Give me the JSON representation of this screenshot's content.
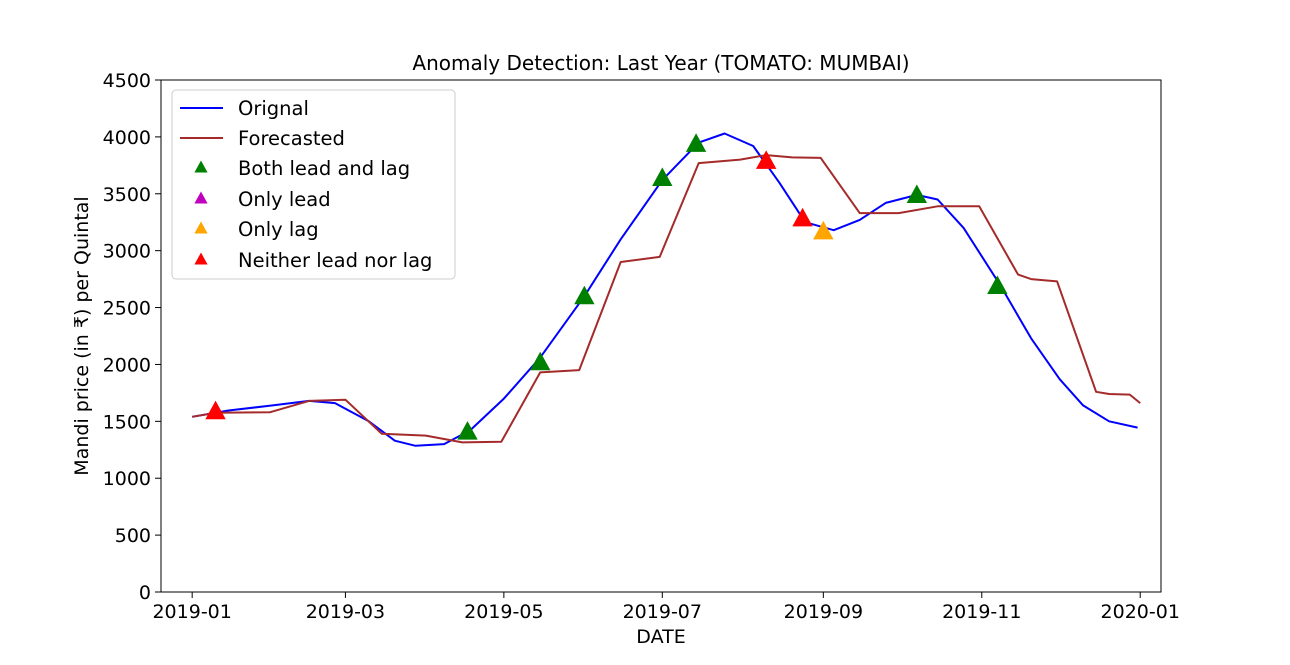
{
  "chart_data": {
    "type": "line",
    "title": "Anomaly Detection: Last Year (TOMATO: MUMBAI)",
    "xlabel": "DATE",
    "ylabel": "Mandi price (in ₹) per Quintal",
    "x_range": [
      "2018-12-20",
      "2020-01-09"
    ],
    "ylim": [
      0,
      4500
    ],
    "x_ticks": [
      "2019-01",
      "2019-03",
      "2019-05",
      "2019-07",
      "2019-09",
      "2019-11",
      "2020-01"
    ],
    "x_tick_dates": [
      "2019-01-01",
      "2019-03-01",
      "2019-05-01",
      "2019-07-01",
      "2019-09-01",
      "2019-11-01",
      "2020-01-01"
    ],
    "y_ticks": [
      0,
      500,
      1000,
      1500,
      2000,
      2500,
      3000,
      3500,
      4000,
      4500
    ],
    "grid": false,
    "legend_position": "top-left",
    "series": [
      {
        "name": "Orignal",
        "color": "#0000ff",
        "points": [
          [
            "2019-01-01",
            1540
          ],
          [
            "2019-01-15",
            1595
          ],
          [
            "2019-02-01",
            1640
          ],
          [
            "2019-02-15",
            1680
          ],
          [
            "2019-02-25",
            1660
          ],
          [
            "2019-03-10",
            1500
          ],
          [
            "2019-03-20",
            1330
          ],
          [
            "2019-03-28",
            1285
          ],
          [
            "2019-04-08",
            1300
          ],
          [
            "2019-04-18",
            1420
          ],
          [
            "2019-05-01",
            1700
          ],
          [
            "2019-05-15",
            2060
          ],
          [
            "2019-06-01",
            2600
          ],
          [
            "2019-06-15",
            3100
          ],
          [
            "2019-07-01",
            3620
          ],
          [
            "2019-07-15",
            3950
          ],
          [
            "2019-07-25",
            4030
          ],
          [
            "2019-08-05",
            3920
          ],
          [
            "2019-08-15",
            3600
          ],
          [
            "2019-08-25",
            3250
          ],
          [
            "2019-09-05",
            3180
          ],
          [
            "2019-09-15",
            3270
          ],
          [
            "2019-09-25",
            3420
          ],
          [
            "2019-10-07",
            3490
          ],
          [
            "2019-10-15",
            3450
          ],
          [
            "2019-10-25",
            3200
          ],
          [
            "2019-11-08",
            2700
          ],
          [
            "2019-11-20",
            2230
          ],
          [
            "2019-12-01",
            1870
          ],
          [
            "2019-12-10",
            1640
          ],
          [
            "2019-12-20",
            1500
          ],
          [
            "2019-12-31",
            1445
          ]
        ]
      },
      {
        "name": "Forecasted",
        "color": "#a52a2a",
        "points": [
          [
            "2019-01-01",
            1540
          ],
          [
            "2019-01-10",
            1575
          ],
          [
            "2019-01-31",
            1580
          ],
          [
            "2019-02-15",
            1680
          ],
          [
            "2019-03-01",
            1690
          ],
          [
            "2019-03-15",
            1390
          ],
          [
            "2019-04-01",
            1375
          ],
          [
            "2019-04-15",
            1315
          ],
          [
            "2019-04-30",
            1320
          ],
          [
            "2019-05-15",
            1930
          ],
          [
            "2019-05-30",
            1950
          ],
          [
            "2019-06-15",
            2900
          ],
          [
            "2019-06-30",
            2945
          ],
          [
            "2019-07-15",
            3770
          ],
          [
            "2019-07-31",
            3800
          ],
          [
            "2019-08-10",
            3840
          ],
          [
            "2019-08-20",
            3820
          ],
          [
            "2019-08-31",
            3815
          ],
          [
            "2019-09-15",
            3330
          ],
          [
            "2019-09-30",
            3330
          ],
          [
            "2019-10-15",
            3390
          ],
          [
            "2019-10-31",
            3390
          ],
          [
            "2019-11-15",
            2790
          ],
          [
            "2019-11-20",
            2750
          ],
          [
            "2019-11-30",
            2730
          ],
          [
            "2019-12-15",
            1760
          ],
          [
            "2019-12-20",
            1740
          ],
          [
            "2019-12-28",
            1735
          ],
          [
            "2020-01-01",
            1660
          ]
        ]
      }
    ],
    "markers": [
      {
        "name": "Both lead and lag",
        "color": "#008000",
        "points": [
          [
            "2019-04-17",
            1400
          ],
          [
            "2019-05-15",
            2010
          ],
          [
            "2019-06-01",
            2590
          ],
          [
            "2019-07-01",
            3630
          ],
          [
            "2019-07-14",
            3930
          ],
          [
            "2019-10-07",
            3480
          ],
          [
            "2019-11-07",
            2680
          ]
        ]
      },
      {
        "name": "Only lead",
        "color": "#bf00bf",
        "points": []
      },
      {
        "name": "Only lag",
        "color": "#ffa500",
        "points": [
          [
            "2019-09-01",
            3160
          ]
        ]
      },
      {
        "name": "Neither lead nor lag",
        "color": "#ff0000",
        "points": [
          [
            "2019-01-10",
            1580
          ],
          [
            "2019-08-10",
            3780
          ],
          [
            "2019-08-24",
            3275
          ]
        ]
      }
    ]
  }
}
